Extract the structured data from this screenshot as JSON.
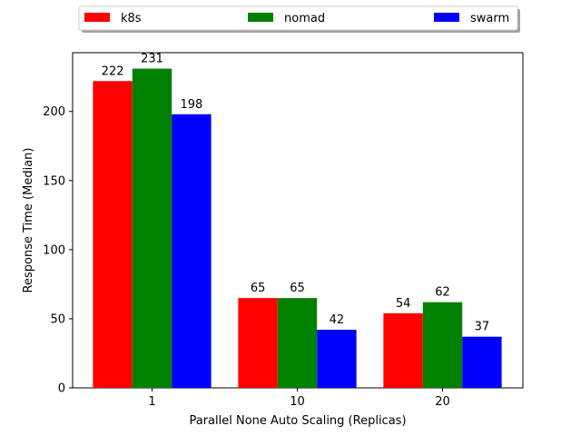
{
  "chart_data": {
    "type": "bar",
    "categories": [
      "1",
      "10",
      "20"
    ],
    "series": [
      {
        "name": "k8s",
        "color": "#ff0000",
        "values": [
          222,
          65,
          54
        ]
      },
      {
        "name": "nomad",
        "color": "#008000",
        "values": [
          231,
          65,
          62
        ]
      },
      {
        "name": "swarm",
        "color": "#0000ff",
        "values": [
          198,
          42,
          37
        ]
      }
    ],
    "xlabel": "Parallel None Auto Scaling (Replicas)",
    "ylabel": "Response Time (Median)",
    "ylim": [
      0,
      242.55
    ],
    "yticks": [
      0,
      50,
      100,
      150,
      200
    ],
    "grid": false,
    "legend": {
      "placement": "top-center, outside above plot",
      "columns": 3
    },
    "data_labels": true
  }
}
